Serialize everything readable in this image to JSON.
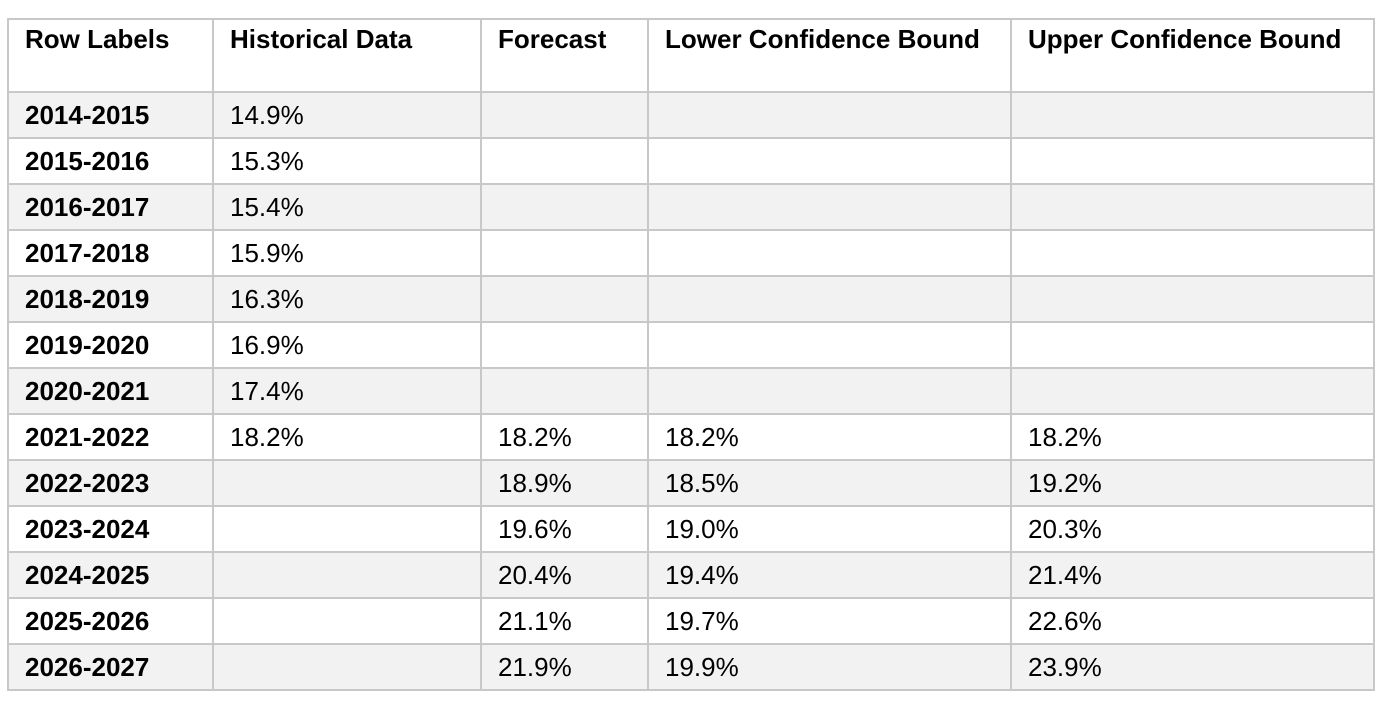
{
  "table": {
    "headers": [
      "Row Labels",
      "Historical Data",
      "Forecast",
      "Lower Confidence Bound",
      "Upper Confidence Bound"
    ],
    "rows": [
      [
        "2014-2015",
        "14.9%",
        "",
        "",
        ""
      ],
      [
        "2015-2016",
        "15.3%",
        "",
        "",
        ""
      ],
      [
        "2016-2017",
        "15.4%",
        "",
        "",
        ""
      ],
      [
        "2017-2018",
        "15.9%",
        "",
        "",
        ""
      ],
      [
        "2018-2019",
        "16.3%",
        "",
        "",
        ""
      ],
      [
        "2019-2020",
        "16.9%",
        "",
        "",
        ""
      ],
      [
        "2020-2021",
        "17.4%",
        "",
        "",
        ""
      ],
      [
        "2021-2022",
        "18.2%",
        "18.2%",
        "18.2%",
        "18.2%"
      ],
      [
        "2022-2023",
        "",
        "18.9%",
        "18.5%",
        "19.2%"
      ],
      [
        "2023-2024",
        "",
        "19.6%",
        "19.0%",
        "20.3%"
      ],
      [
        "2024-2025",
        "",
        "20.4%",
        "19.4%",
        "21.4%"
      ],
      [
        "2025-2026",
        "",
        "21.1%",
        "19.7%",
        "22.6%"
      ],
      [
        "2026-2027",
        "",
        "21.9%",
        "19.9%",
        "23.9%"
      ]
    ]
  },
  "colors": {
    "band_row": "#f2f2f2",
    "plain_row": "#ffffff",
    "border": "#c8c8c8"
  }
}
